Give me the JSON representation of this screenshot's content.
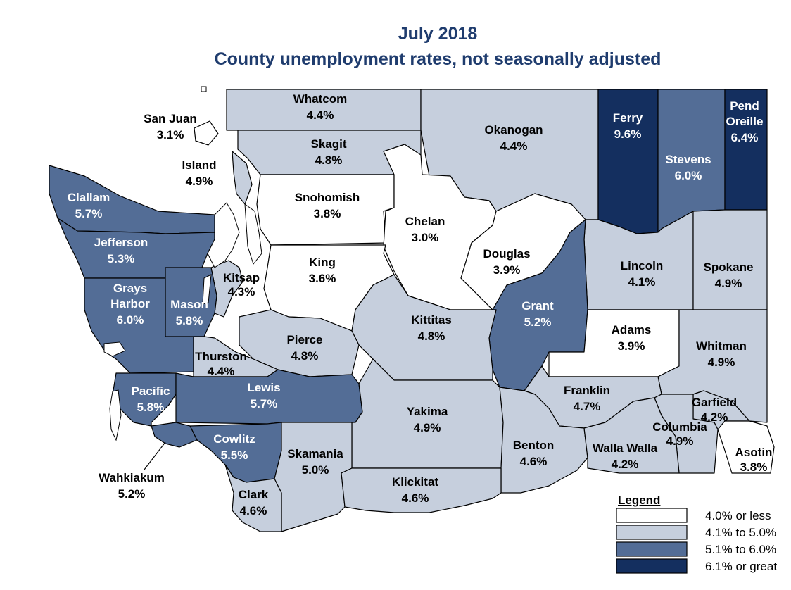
{
  "title": "July 2018",
  "subtitle": "County unemployment rates, not seasonally adjusted",
  "colors": {
    "low": "#ffffff",
    "mid_low": "#c6cfdd",
    "mid_high": "#536d96",
    "high": "#142f5f",
    "border": "#000000",
    "title": "#1f3c6e"
  },
  "legend": {
    "title": "Legend",
    "items": [
      {
        "label": "4.0% or less",
        "class": "low"
      },
      {
        "label": "4.1% to 5.0%",
        "class": "mid_low"
      },
      {
        "label": "5.1% to 6.0%",
        "class": "mid_high"
      },
      {
        "label": "6.1% or great",
        "class": "high"
      }
    ]
  },
  "counties": [
    {
      "id": "whatcom",
      "name": "Whatcom",
      "rate": "4.4%",
      "class": "mid_low"
    },
    {
      "id": "san-juan",
      "name": "San Juan",
      "rate": "3.1%",
      "class": "low"
    },
    {
      "id": "okanogan",
      "name": "Okanogan",
      "rate": "4.4%",
      "class": "mid_low"
    },
    {
      "id": "ferry",
      "name": "Ferry",
      "rate": "9.6%",
      "class": "high"
    },
    {
      "id": "stevens",
      "name": "Stevens",
      "rate": "6.0%",
      "class": "mid_high"
    },
    {
      "id": "pend-oreille",
      "name": "Pend Oreille",
      "rate": "6.4%",
      "class": "high"
    },
    {
      "id": "skagit",
      "name": "Skagit",
      "rate": "4.8%",
      "class": "mid_low"
    },
    {
      "id": "island",
      "name": "Island",
      "rate": "4.9%",
      "class": "mid_low"
    },
    {
      "id": "clallam",
      "name": "Clallam",
      "rate": "5.7%",
      "class": "mid_high"
    },
    {
      "id": "snohomish",
      "name": "Snohomish",
      "rate": "3.8%",
      "class": "low"
    },
    {
      "id": "chelan",
      "name": "Chelan",
      "rate": "3.0%",
      "class": "low"
    },
    {
      "id": "douglas",
      "name": "Douglas",
      "rate": "3.9%",
      "class": "low"
    },
    {
      "id": "jefferson",
      "name": "Jefferson",
      "rate": "5.3%",
      "class": "mid_high"
    },
    {
      "id": "kitsap",
      "name": "Kitsap",
      "rate": "4.3%",
      "class": "mid_low"
    },
    {
      "id": "king",
      "name": "King",
      "rate": "3.6%",
      "class": "low"
    },
    {
      "id": "lincoln",
      "name": "Lincoln",
      "rate": "4.1%",
      "class": "mid_low"
    },
    {
      "id": "spokane",
      "name": "Spokane",
      "rate": "4.9%",
      "class": "mid_low"
    },
    {
      "id": "grays-harbor",
      "name": "Grays Harbor",
      "rate": "6.0%",
      "class": "mid_high"
    },
    {
      "id": "mason",
      "name": "Mason",
      "rate": "5.8%",
      "class": "mid_high"
    },
    {
      "id": "grant",
      "name": "Grant",
      "rate": "5.2%",
      "class": "mid_high"
    },
    {
      "id": "kittitas",
      "name": "Kittitas",
      "rate": "4.8%",
      "class": "mid_low"
    },
    {
      "id": "adams",
      "name": "Adams",
      "rate": "3.9%",
      "class": "low"
    },
    {
      "id": "pierce",
      "name": "Pierce",
      "rate": "4.8%",
      "class": "mid_low"
    },
    {
      "id": "thurston",
      "name": "Thurston",
      "rate": "4.4%",
      "class": "mid_low"
    },
    {
      "id": "whitman",
      "name": "Whitman",
      "rate": "4.9%",
      "class": "mid_low"
    },
    {
      "id": "pacific",
      "name": "Pacific",
      "rate": "5.8%",
      "class": "mid_high"
    },
    {
      "id": "lewis",
      "name": "Lewis",
      "rate": "5.7%",
      "class": "mid_high"
    },
    {
      "id": "franklin",
      "name": "Franklin",
      "rate": "4.7%",
      "class": "mid_low"
    },
    {
      "id": "garfield",
      "name": "Garfield",
      "rate": "4.2%",
      "class": "mid_low"
    },
    {
      "id": "yakima",
      "name": "Yakima",
      "rate": "4.9%",
      "class": "mid_low"
    },
    {
      "id": "cowlitz",
      "name": "Cowlitz",
      "rate": "5.5%",
      "class": "mid_high"
    },
    {
      "id": "columbia",
      "name": "Columbia",
      "rate": "4.9%",
      "class": "mid_low"
    },
    {
      "id": "skamania",
      "name": "Skamania",
      "rate": "5.0%",
      "class": "mid_low"
    },
    {
      "id": "benton",
      "name": "Benton",
      "rate": "4.6%",
      "class": "mid_low"
    },
    {
      "id": "walla-walla",
      "name": "Walla Walla",
      "rate": "4.2%",
      "class": "mid_low"
    },
    {
      "id": "asotin",
      "name": "Asotin",
      "rate": "3.8%",
      "class": "low"
    },
    {
      "id": "wahkiakum",
      "name": "Wahkiakum",
      "rate": "5.2%",
      "class": "mid_high"
    },
    {
      "id": "clark",
      "name": "Clark",
      "rate": "4.6%",
      "class": "mid_low"
    },
    {
      "id": "klickitat",
      "name": "Klickitat",
      "rate": "4.6%",
      "class": "mid_low"
    }
  ]
}
